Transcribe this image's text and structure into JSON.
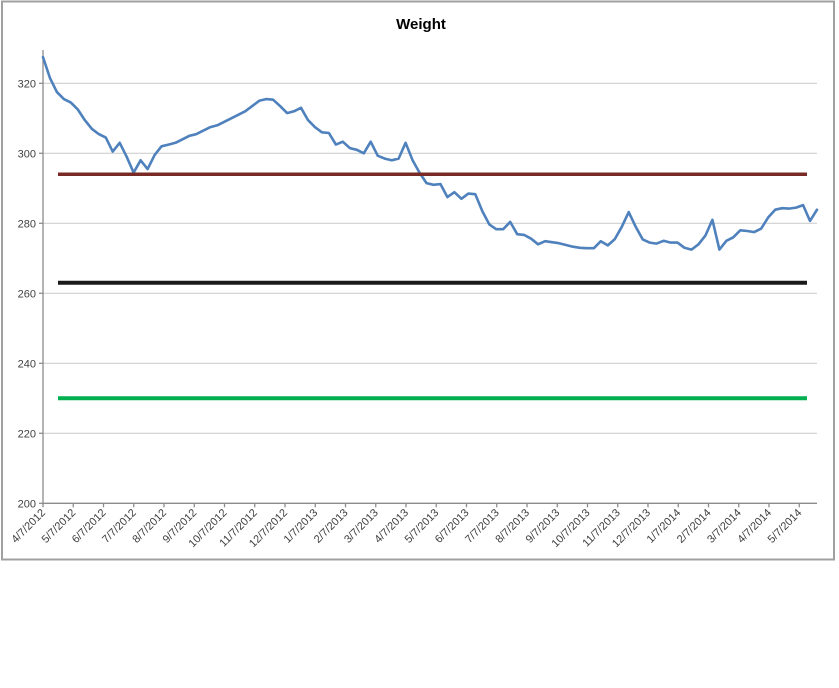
{
  "chart_data": {
    "type": "line",
    "title": "Weight",
    "xlabel": "",
    "ylabel": "",
    "ylim": [
      200,
      329.5
    ],
    "y_ticks": [
      200,
      220,
      240,
      260,
      280,
      300,
      320
    ],
    "grid": "horizontal-only",
    "legend": "none",
    "x_tick_labels": [
      "4/7/2012",
      "5/7/2012",
      "6/7/2012",
      "7/7/2012",
      "8/7/2012",
      "9/7/2012",
      "10/7/2012",
      "11/7/2012",
      "12/7/2012",
      "1/7/2013",
      "2/7/2013",
      "3/7/2013",
      "4/7/2013",
      "5/7/2013",
      "6/7/2013",
      "7/7/2013",
      "8/7/2013",
      "9/7/2013",
      "10/7/2013",
      "11/7/2013",
      "12/7/2013",
      "1/7/2014",
      "2/7/2014",
      "3/7/2014",
      "4/7/2014",
      "5/7/2014"
    ],
    "series": [
      {
        "name": "Weight",
        "color": "#4F81BD",
        "x": [
          "4/7/2012",
          "4/14/2012",
          "4/21/2012",
          "4/28/2012",
          "5/5/2012",
          "5/12/2012",
          "5/19/2012",
          "5/26/2012",
          "6/2/2012",
          "6/9/2012",
          "6/16/2012",
          "6/23/2012",
          "6/30/2012",
          "7/7/2012",
          "7/14/2012",
          "7/21/2012",
          "7/28/2012",
          "8/4/2012",
          "8/11/2012",
          "8/18/2012",
          "8/25/2012",
          "9/1/2012",
          "9/8/2012",
          "9/15/2012",
          "9/22/2012",
          "9/29/2012",
          "10/6/2012",
          "10/13/2012",
          "10/20/2012",
          "10/27/2012",
          "11/3/2012",
          "11/10/2012",
          "11/17/2012",
          "11/24/2012",
          "12/1/2012",
          "12/8/2012",
          "12/15/2012",
          "12/22/2012",
          "12/29/2012",
          "1/5/2013",
          "1/12/2013",
          "1/19/2013",
          "1/26/2013",
          "2/2/2013",
          "2/9/2013",
          "2/16/2013",
          "2/23/2013",
          "3/2/2013",
          "3/9/2013",
          "3/16/2013",
          "3/23/2013",
          "3/30/2013",
          "4/6/2013",
          "4/13/2013",
          "4/20/2013",
          "4/27/2013",
          "5/4/2013",
          "5/11/2013",
          "5/18/2013",
          "5/25/2013",
          "6/1/2013",
          "6/8/2013",
          "6/15/2013",
          "6/22/2013",
          "6/29/2013",
          "7/6/2013",
          "7/13/2013",
          "7/20/2013",
          "7/27/2013",
          "8/3/2013",
          "8/10/2013",
          "8/17/2013",
          "8/24/2013",
          "8/31/2013",
          "9/7/2013",
          "9/14/2013",
          "9/21/2013",
          "9/28/2013",
          "10/5/2013",
          "10/12/2013",
          "10/19/2013",
          "10/26/2013",
          "11/2/2013",
          "11/9/2013",
          "11/16/2013",
          "11/23/2013",
          "11/30/2013",
          "12/7/2013",
          "12/14/2013",
          "12/21/2013",
          "12/28/2013",
          "1/4/2014",
          "1/11/2014",
          "1/18/2014",
          "1/25/2014",
          "2/1/2014",
          "2/8/2014",
          "2/15/2014",
          "2/22/2014",
          "3/1/2014",
          "3/8/2014",
          "3/15/2014",
          "3/22/2014",
          "3/29/2014",
          "4/5/2014",
          "4/12/2014",
          "4/19/2014",
          "4/26/2014",
          "5/3/2014",
          "5/10/2014",
          "5/17/2014",
          "5/24/2014"
        ],
        "values": [
          327.5,
          321.5,
          317.5,
          315.5,
          314.5,
          312.5,
          309.5,
          307.0,
          305.5,
          304.5,
          300.5,
          303.0,
          299.0,
          294.5,
          298.0,
          295.5,
          299.5,
          302.0,
          302.5,
          303.0,
          304.0,
          305.0,
          305.5,
          306.5,
          307.5,
          308.0,
          309.0,
          310.0,
          311.0,
          312.0,
          313.5,
          315.0,
          315.5,
          315.3,
          313.5,
          311.5,
          312.0,
          313.0,
          309.5,
          307.5,
          306.0,
          305.8,
          302.5,
          303.3,
          301.5,
          301.0,
          300.0,
          303.3,
          299.3,
          298.5,
          298.0,
          298.5,
          303.0,
          298.0,
          294.5,
          291.5,
          291.0,
          291.2,
          287.5,
          288.9,
          287.0,
          288.5,
          288.3,
          283.5,
          279.7,
          278.3,
          278.3,
          280.4,
          276.9,
          276.7,
          275.6,
          274.0,
          274.9,
          274.6,
          274.3,
          273.8,
          273.3,
          273.0,
          272.9,
          272.9,
          274.9,
          273.7,
          275.5,
          279.0,
          283.2,
          279.0,
          275.4,
          274.5,
          274.2,
          275.0,
          274.5,
          274.5,
          273.0,
          272.5,
          274.0,
          276.5,
          281.0,
          272.5,
          275.0,
          276.0,
          278.0,
          277.8,
          277.5,
          278.5,
          281.7,
          283.9,
          284.3,
          284.2,
          284.5,
          285.2,
          280.7,
          283.9
        ]
      }
    ],
    "reference_lines": [
      {
        "color": "#7A2A25",
        "value": 294
      },
      {
        "color": "#1A1A1A",
        "value": 263
      },
      {
        "color": "#00B050",
        "value": 230
      }
    ]
  }
}
